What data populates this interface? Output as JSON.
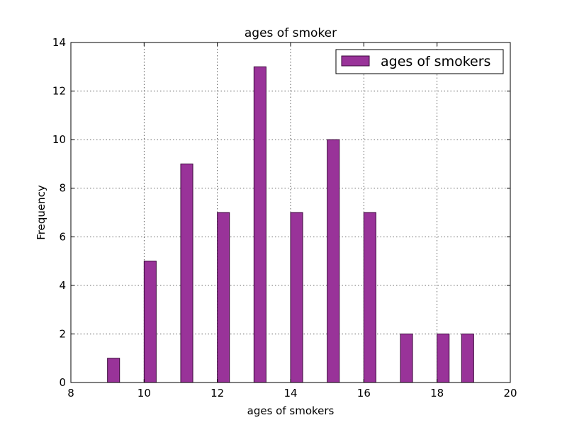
{
  "chart_data": {
    "type": "bar",
    "title": "ages of smoker",
    "xlabel": "ages of smokers",
    "ylabel": "Frequency",
    "xlim": [
      8,
      20
    ],
    "ylim": [
      0,
      14
    ],
    "xticks": [
      8,
      10,
      12,
      14,
      16,
      18,
      20
    ],
    "yticks": [
      0,
      2,
      4,
      6,
      8,
      10,
      12,
      14
    ],
    "grid": true,
    "legend_position": "top-right",
    "bar_color": "#993399",
    "bar_edge_color": "#3a0a3a",
    "series": [
      {
        "name": "ages of smokers",
        "bins": [
          {
            "x0": 9.0,
            "x1": 9.33,
            "value": 1
          },
          {
            "x0": 10.0,
            "x1": 10.33,
            "value": 5
          },
          {
            "x0": 11.0,
            "x1": 11.33,
            "value": 9
          },
          {
            "x0": 12.0,
            "x1": 12.33,
            "value": 7
          },
          {
            "x0": 13.0,
            "x1": 13.33,
            "value": 13
          },
          {
            "x0": 14.0,
            "x1": 14.33,
            "value": 7
          },
          {
            "x0": 15.0,
            "x1": 15.33,
            "value": 10
          },
          {
            "x0": 16.0,
            "x1": 16.33,
            "value": 7
          },
          {
            "x0": 17.0,
            "x1": 17.33,
            "value": 2
          },
          {
            "x0": 18.0,
            "x1": 18.33,
            "value": 2
          },
          {
            "x0": 18.67,
            "x1": 19.0,
            "value": 2
          }
        ]
      }
    ]
  }
}
